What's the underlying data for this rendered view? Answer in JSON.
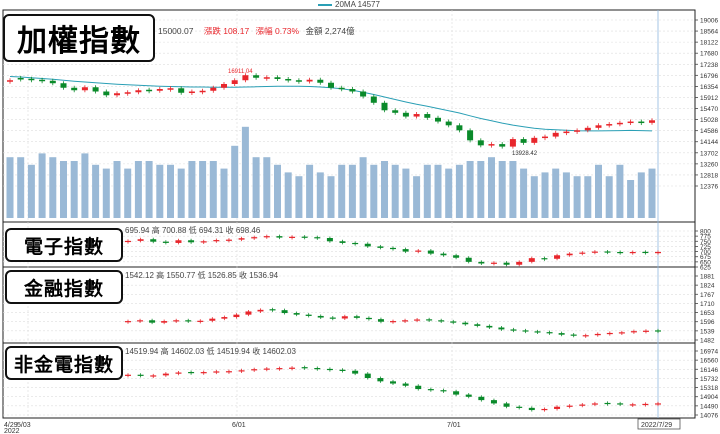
{
  "legend": {
    "ma_label": "20MA 14577"
  },
  "panels": [
    {
      "title": "加權指數",
      "info": {
        "close": "15000.07",
        "change_label": "漲跌",
        "change": "108.17",
        "pct_label": "漲幅",
        "pct": "0.73%",
        "amount_label": "金額",
        "amount": "2,274億"
      },
      "y_ticks": [
        "19006",
        "18564",
        "18122",
        "17680",
        "17238",
        "16796",
        "16354",
        "15912",
        "15470",
        "15028",
        "14586",
        "14144",
        "13702",
        "13260",
        "12818",
        "12376"
      ],
      "annotations": {
        "high": "16911.04",
        "low": "13928.42"
      }
    },
    {
      "title": "電子指數",
      "info": {
        "open_label": "",
        "open": "695.94",
        "high_label": "高",
        "high": "700.88",
        "low_label": "低",
        "low": "694.31",
        "close_label": "收",
        "close": "698.46"
      },
      "y_ticks": [
        "800",
        "775",
        "750",
        "725",
        "700",
        "675",
        "650",
        "625"
      ]
    },
    {
      "title": "金融指數",
      "info": {
        "open_label": "",
        "open": "1542.12",
        "high_label": "高",
        "high": "1550.77",
        "low_label": "低",
        "low": "1526.85",
        "close_label": "收",
        "close": "1536.94"
      },
      "y_ticks": [
        "1881",
        "1824",
        "1767",
        "1710",
        "1653",
        "1596",
        "1539",
        "1482"
      ]
    },
    {
      "title": "非金電指數",
      "info": {
        "open_label": "",
        "open": "14519.94",
        "high_label": "高",
        "high": "14602.03",
        "low_label": "低",
        "low": "14519.94",
        "close_label": "收",
        "close": "14602.03"
      },
      "y_ticks": [
        "16974",
        "16560",
        "16146",
        "15732",
        "15318",
        "14904",
        "14490",
        "14076"
      ]
    }
  ],
  "x_axis": {
    "ticks": [
      "4/29",
      "5/03",
      "6/01",
      "7/01"
    ],
    "year": "2022",
    "current_date": "2022/7/29"
  },
  "colors": {
    "up": "#e8262c",
    "down": "#0a8a2a",
    "ma": "#2a9fb5",
    "volume": "#9ab9d6"
  },
  "chart_data": [
    {
      "type": "candlestick",
      "title": "加權指數",
      "x_range": [
        "2022-04-29",
        "2022-07-29"
      ],
      "close": [
        16600,
        16650,
        16620,
        16580,
        16480,
        16300,
        16200,
        16320,
        16150,
        16000,
        16080,
        16120,
        16200,
        16180,
        16250,
        16280,
        16100,
        16150,
        16180,
        16300,
        16450,
        16600,
        16800,
        16700,
        16720,
        16650,
        16600,
        16550,
        16620,
        16500,
        16300,
        16250,
        16150,
        15950,
        15700,
        15400,
        15300,
        15150,
        15250,
        15100,
        14950,
        14800,
        14600,
        14200,
        14000,
        14050,
        13950,
        14250,
        14100,
        14300,
        14350,
        14500,
        14550,
        14600,
        14700,
        14800,
        14850,
        14900,
        14950,
        14900,
        15000
      ],
      "direction": [
        "u",
        "d",
        "d",
        "d",
        "d",
        "d",
        "d",
        "u",
        "d",
        "d",
        "u",
        "u",
        "u",
        "d",
        "u",
        "u",
        "d",
        "u",
        "u",
        "u",
        "u",
        "u",
        "u",
        "d",
        "u",
        "d",
        "d",
        "d",
        "u",
        "d",
        "d",
        "d",
        "d",
        "d",
        "d",
        "d",
        "d",
        "d",
        "u",
        "d",
        "d",
        "d",
        "d",
        "d",
        "d",
        "u",
        "d",
        "u",
        "d",
        "u",
        "u",
        "u",
        "u",
        "u",
        "u",
        "u",
        "u",
        "u",
        "u",
        "d",
        "u"
      ],
      "volume": [
        1.6,
        1.6,
        1.4,
        1.7,
        1.6,
        1.5,
        1.5,
        1.7,
        1.4,
        1.3,
        1.5,
        1.3,
        1.5,
        1.5,
        1.4,
        1.4,
        1.3,
        1.5,
        1.5,
        1.5,
        1.3,
        1.9,
        2.4,
        1.6,
        1.6,
        1.4,
        1.2,
        1.1,
        1.4,
        1.2,
        1.1,
        1.4,
        1.4,
        1.6,
        1.4,
        1.5,
        1.4,
        1.3,
        1.1,
        1.4,
        1.4,
        1.3,
        1.4,
        1.5,
        1.5,
        1.6,
        1.5,
        1.5,
        1.3,
        1.1,
        1.2,
        1.3,
        1.2,
        1.1,
        1.1,
        1.4,
        1.1,
        1.4,
        1.0,
        1.2,
        1.3
      ],
      "ma20": [
        16750,
        16730,
        16700,
        16670,
        16640,
        16600,
        16560,
        16530,
        16500,
        16470,
        16440,
        16420,
        16400,
        16380,
        16360,
        16350,
        16340,
        16330,
        16330,
        16320,
        16320,
        16320,
        16330,
        16340,
        16350,
        16360,
        16360,
        16360,
        16350,
        16330,
        16300,
        16260,
        16200,
        16120,
        16030,
        15930,
        15830,
        15730,
        15640,
        15560,
        15470,
        15380,
        15290,
        15180,
        15070,
        14980,
        14890,
        14810,
        14740,
        14680,
        14640,
        14620,
        14600,
        14580,
        14575,
        14577,
        14580,
        14590,
        14595,
        14590,
        14577
      ],
      "ylim": [
        12376,
        19006
      ]
    },
    {
      "type": "candlestick",
      "title": "電子指數",
      "close": [
        752,
        760,
        748,
        742,
        755,
        745,
        750,
        756,
        758,
        765,
        770,
        775,
        768,
        772,
        770,
        766,
        750,
        742,
        738,
        725,
        718,
        712,
        700,
        705,
        690,
        682,
        670,
        650,
        642,
        646,
        636,
        650,
        668,
        665,
        682,
        690,
        695,
        700,
        698,
        694,
        698,
        696,
        698
      ],
      "direction": [
        "u",
        "u",
        "d",
        "d",
        "u",
        "d",
        "u",
        "u",
        "u",
        "u",
        "u",
        "u",
        "d",
        "u",
        "d",
        "d",
        "d",
        "d",
        "d",
        "d",
        "d",
        "d",
        "d",
        "u",
        "d",
        "d",
        "d",
        "d",
        "d",
        "u",
        "d",
        "u",
        "u",
        "d",
        "u",
        "u",
        "u",
        "u",
        "d",
        "d",
        "u",
        "d",
        "u"
      ],
      "ylim": [
        625,
        800
      ]
    },
    {
      "title": "金融指數",
      "type": "candlestick",
      "close": [
        1600,
        1605,
        1590,
        1600,
        1605,
        1598,
        1602,
        1615,
        1625,
        1640,
        1660,
        1670,
        1668,
        1650,
        1640,
        1632,
        1622,
        1616,
        1630,
        1620,
        1612,
        1596,
        1600,
        1605,
        1610,
        1605,
        1598,
        1590,
        1580,
        1570,
        1560,
        1548,
        1542,
        1535,
        1530,
        1525,
        1515,
        1510,
        1512,
        1520,
        1526,
        1530,
        1537,
        1540,
        1536
      ],
      "direction": [
        "u",
        "u",
        "d",
        "u",
        "u",
        "d",
        "u",
        "u",
        "u",
        "u",
        "u",
        "u",
        "d",
        "d",
        "d",
        "d",
        "d",
        "d",
        "u",
        "d",
        "d",
        "d",
        "u",
        "u",
        "u",
        "d",
        "d",
        "d",
        "d",
        "d",
        "d",
        "d",
        "d",
        "d",
        "d",
        "d",
        "d",
        "d",
        "u",
        "u",
        "u",
        "u",
        "u",
        "u",
        "d"
      ],
      "ylim": [
        1482,
        1881
      ]
    },
    {
      "title": "非金電指數",
      "type": "candlestick",
      "close": [
        15900,
        15850,
        15870,
        15950,
        16000,
        15980,
        16020,
        16050,
        16060,
        16100,
        16150,
        16180,
        16200,
        16220,
        16200,
        16160,
        16120,
        16080,
        15950,
        15750,
        15600,
        15500,
        15400,
        15250,
        15200,
        15150,
        15000,
        14900,
        14750,
        14600,
        14450,
        14400,
        14300,
        14350,
        14450,
        14500,
        14550,
        14600,
        14580,
        14560,
        14560,
        14580,
        14602
      ],
      "direction": [
        "u",
        "d",
        "u",
        "u",
        "u",
        "d",
        "u",
        "u",
        "u",
        "u",
        "u",
        "u",
        "u",
        "u",
        "d",
        "d",
        "d",
        "d",
        "d",
        "d",
        "d",
        "d",
        "d",
        "d",
        "d",
        "d",
        "d",
        "d",
        "d",
        "d",
        "d",
        "d",
        "d",
        "u",
        "u",
        "u",
        "u",
        "u",
        "d",
        "d",
        "u",
        "u",
        "u"
      ],
      "ylim": [
        14076,
        16974
      ]
    }
  ]
}
